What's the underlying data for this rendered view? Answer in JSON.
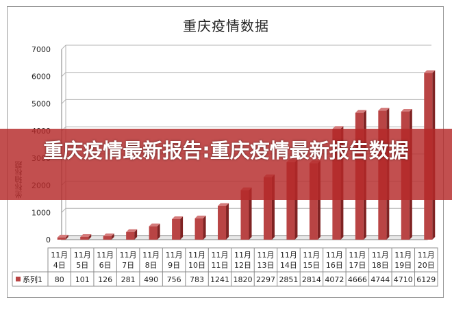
{
  "banner": {
    "headline": "重庆疫情最新报告:重庆疫情最新报告数据"
  },
  "chart_data": {
    "type": "bar",
    "title": "重庆疫情数据",
    "ylabel": "坐标轴标题",
    "xlabel": "",
    "ylim": [
      0,
      7000
    ],
    "yticks": [
      0,
      1000,
      2000,
      3000,
      4000,
      5000,
      6000,
      7000
    ],
    "grid": true,
    "categories": [
      "11月4日",
      "11月5日",
      "11月6日",
      "11月7日",
      "11月8日",
      "11月9日",
      "11月10日",
      "11月11日",
      "11月12日",
      "11月13日",
      "11月14日",
      "11月15日",
      "11月16日",
      "11月17日",
      "11月18日",
      "11月19日",
      "11月20日"
    ],
    "series": [
      {
        "name": "系列1",
        "values": [
          80,
          101,
          126,
          281,
          490,
          756,
          783,
          1241,
          1820,
          2297,
          2851,
          2814,
          4072,
          4666,
          4744,
          4710,
          6129
        ]
      }
    ],
    "legend": "data-table",
    "colors": {
      "bar_front": "#b94444",
      "bar_side": "#7f2323",
      "bar_top": "#d47b7b",
      "grid": "#b4b4b4",
      "axis": "#7f7f7f"
    }
  }
}
